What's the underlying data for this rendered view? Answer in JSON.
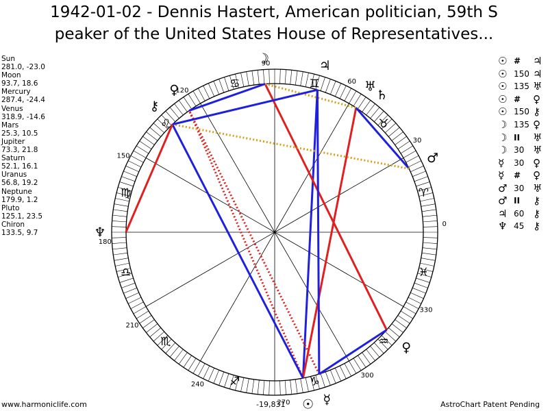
{
  "title": {
    "line1": "1942-01-02 - Dennis Hastert, American politician, 59th S",
    "line2": "peaker of the United States House of Representatives..."
  },
  "planets": [
    {
      "name": "Sun",
      "coords": "281.0, -23.0"
    },
    {
      "name": "Moon",
      "coords": "93.7, 18.6"
    },
    {
      "name": "Mercury",
      "coords": "287.4, -24.4"
    },
    {
      "name": "Venus",
      "coords": "318.9, -14.6"
    },
    {
      "name": "Mars",
      "coords": "25.3, 10.5"
    },
    {
      "name": "Jupiter",
      "coords": "73.3, 21.8"
    },
    {
      "name": "Saturn",
      "coords": "52.1, 16.1"
    },
    {
      "name": "Uranus",
      "coords": "56.8, 19.2"
    },
    {
      "name": "Neptune",
      "coords": "179.9, 1.2"
    },
    {
      "name": "Pluto",
      "coords": "125.1, 23.5"
    },
    {
      "name": "Chiron",
      "coords": "133.5, 9.7"
    }
  ],
  "aspects": [
    {
      "p1": "☉",
      "angle": "#",
      "p2": "♃"
    },
    {
      "p1": "☉",
      "angle": "150",
      "p2": "♃"
    },
    {
      "p1": "☉",
      "angle": "135",
      "p2": "♅"
    },
    {
      "p1": "☉",
      "angle": "#",
      "p2": "♀"
    },
    {
      "p1": "☉",
      "angle": "150",
      "p2": "⚷"
    },
    {
      "p1": "☽",
      "angle": "135",
      "p2": "♀"
    },
    {
      "p1": "☽",
      "angle": "II",
      "p2": "♅"
    },
    {
      "p1": "☽",
      "angle": "30",
      "p2": "♅"
    },
    {
      "p1": "☿",
      "angle": "30",
      "p2": "♀"
    },
    {
      "p1": "☿",
      "angle": "#",
      "p2": "♀"
    },
    {
      "p1": "♂",
      "angle": "30",
      "p2": "♅"
    },
    {
      "p1": "♂",
      "angle": "II",
      "p2": "⚷"
    },
    {
      "p1": "♃",
      "angle": "60",
      "p2": "⚷"
    },
    {
      "p1": "♆",
      "angle": "45",
      "p2": "⚷"
    }
  ],
  "wheel": {
    "degree_labels": [
      "0",
      "30",
      "60",
      "90",
      "120",
      "150",
      "180",
      "210",
      "240",
      "270",
      "300",
      "330"
    ],
    "zodiac_glyphs": [
      "♈",
      "♉",
      "♊",
      "♋",
      "♌",
      "♍",
      "♎",
      "♏",
      "♐",
      "♑",
      "♒",
      "♓"
    ],
    "bodies": [
      {
        "glyph": "☉",
        "longitude": 281.0
      },
      {
        "glyph": "☽",
        "longitude": 93.7
      },
      {
        "glyph": "☿",
        "longitude": 287.4
      },
      {
        "glyph": "♀",
        "longitude": 318.9
      },
      {
        "glyph": "♂",
        "longitude": 25.3
      },
      {
        "glyph": "♃",
        "longitude": 73.3
      },
      {
        "glyph": "♄",
        "longitude": 52.1
      },
      {
        "glyph": "♅",
        "longitude": 56.8
      },
      {
        "glyph": "♆",
        "longitude": 179.9
      },
      {
        "glyph": "♀",
        "longitude": 125.1
      },
      {
        "glyph": "⚷",
        "longitude": 133.5
      }
    ],
    "aspect_lines": [
      {
        "from": 281.0,
        "to": 73.3,
        "style": "blue"
      },
      {
        "from": 281.0,
        "to": 56.8,
        "style": "red"
      },
      {
        "from": 281.0,
        "to": 125.1,
        "style": "red-dotted"
      },
      {
        "from": 281.0,
        "to": 133.5,
        "style": "blue"
      },
      {
        "from": 93.7,
        "to": 318.9,
        "style": "red"
      },
      {
        "from": 93.7,
        "to": 56.8,
        "style": "gold-dotted"
      },
      {
        "from": 93.7,
        "to": 125.1,
        "style": "blue"
      },
      {
        "from": 287.4,
        "to": 318.9,
        "style": "blue"
      },
      {
        "from": 287.4,
        "to": 125.1,
        "style": "red-dotted"
      },
      {
        "from": 25.3,
        "to": 56.8,
        "style": "blue"
      },
      {
        "from": 25.3,
        "to": 133.5,
        "style": "gold-dotted"
      },
      {
        "from": 73.3,
        "to": 133.5,
        "style": "blue"
      },
      {
        "from": 179.9,
        "to": 133.5,
        "style": "red"
      },
      {
        "from": 287.4,
        "to": 73.3,
        "style": "blue"
      }
    ],
    "colors": {
      "blue": "#1f1fe0",
      "red": "#e01f1f",
      "gold": "#d4a017",
      "ring": "#000000"
    }
  },
  "footer": {
    "left": "www.harmoniclife.com",
    "center": "-19,831",
    "right": "AstroChart Patent Pending"
  }
}
